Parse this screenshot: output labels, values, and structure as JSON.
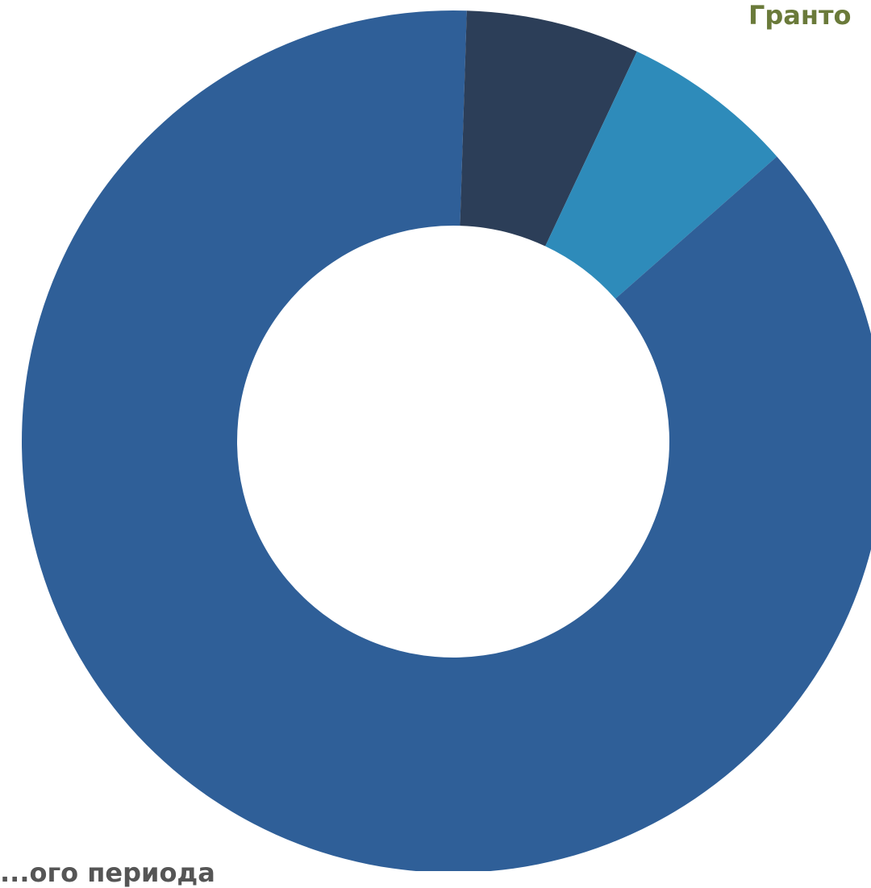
{
  "chart_data": {
    "type": "pie",
    "style": "donut",
    "labels": {
      "top_right": "Гранто",
      "bottom_left": "...ого периода"
    },
    "slices": [
      {
        "value": 0.5,
        "color": "#2f5f98",
        "name": ""
      },
      {
        "value": 6.5,
        "color": "#2c3e58",
        "name": ""
      },
      {
        "value": 6.5,
        "color": "#2e8bba",
        "name": ""
      },
      {
        "value": 86.5,
        "color": "#2f5f98",
        "name": ""
      }
    ]
  }
}
